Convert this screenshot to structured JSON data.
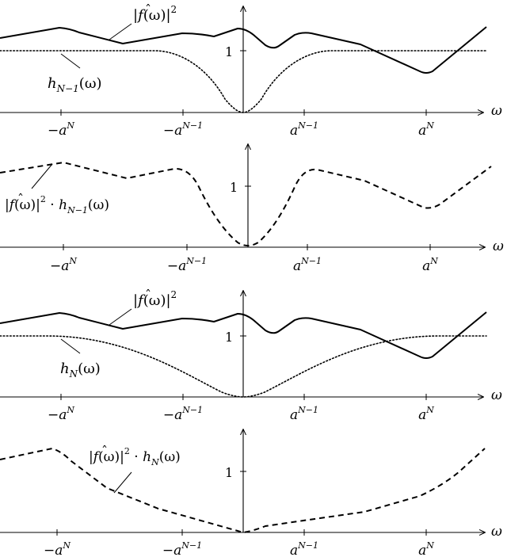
{
  "tick_labels": {
    "neg_aN": {
      "pre": "−a",
      "sup": "N"
    },
    "neg_aN1": {
      "pre": "−a",
      "sup": "N−1"
    },
    "aN1": {
      "pre": "a",
      "sup": "N−1"
    },
    "aN": {
      "pre": "a",
      "sup": "N"
    }
  },
  "y_tick_label": "1",
  "x_axis_label": "ω",
  "expressions": {
    "f_hat_sq": {
      "pre": "|",
      "hat": "ˆ",
      "f": "f",
      "arg": "(ω)|",
      "sup": "2"
    },
    "h_N_minus_1": {
      "base": "h",
      "sub": "N−1",
      "arg": "(ω)"
    },
    "h_N": {
      "base": "h",
      "sub": "N",
      "arg": "(ω)"
    },
    "product_N_minus_1": {
      "pre": "|",
      "f": "f",
      "arg": "(ω)|",
      "sup": "2",
      "dot": " · ",
      "h": "h",
      "sub": "N−1",
      "tail": "(ω)"
    },
    "product_N": {
      "pre": "|",
      "f": "f",
      "arg": "(ω)|",
      "sup": "2",
      "dot": " · ",
      "h": "h",
      "sub": "N",
      "tail": "(ω)"
    }
  }
}
